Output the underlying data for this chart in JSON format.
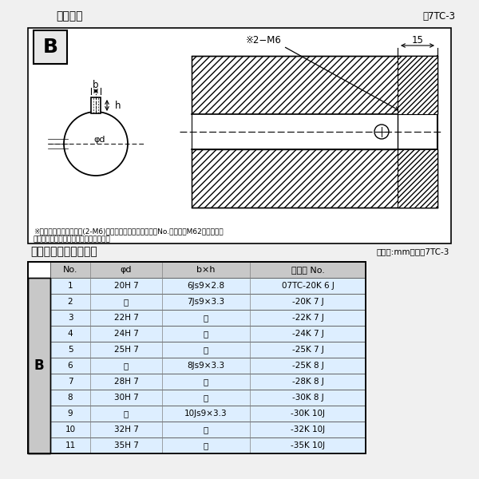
{
  "bg_color": "#f0f0f0",
  "section1_title": "軸穴形状",
  "section1_fig_ref": "囷7TC-3",
  "section2_title": "軸穴形状コード一覧表",
  "section2_unit": "（単位:mm）　袅7TC-3",
  "note_line1": "※セットボルト用タップ(2-M6)が必要な場合は右記コードNo.の末尾にM62を付ける。",
  "note_line2": "（セットボルトは付属されています。）",
  "table_headers": [
    "No.",
    "φd",
    "b×h",
    "コード No."
  ],
  "table_rows": [
    [
      "1",
      "20H 7",
      "6Js9×2.8",
      "07TC-20K 6 J"
    ],
    [
      "2",
      "゜",
      "7Js9×3.3",
      "-20K 7 J"
    ],
    [
      "3",
      "22H 7",
      "゜",
      "-22K 7 J"
    ],
    [
      "4",
      "24H 7",
      "゜",
      "-24K 7 J"
    ],
    [
      "5",
      "25H 7",
      "゜",
      "-25K 7 J"
    ],
    [
      "6",
      "゜",
      "8Js9×3.3",
      "-25K 8 J"
    ],
    [
      "7",
      "28H 7",
      "゜",
      "-28K 8 J"
    ],
    [
      "8",
      "30H 7",
      "゜",
      "-30K 8 J"
    ],
    [
      "9",
      "゜",
      "10Js9×3.3",
      "-30K 10J"
    ],
    [
      "10",
      "32H 7",
      "゜",
      "-32K 10J"
    ],
    [
      "11",
      "35H 7",
      "゜",
      "-35K 10J"
    ]
  ],
  "row_label_B": "B",
  "header_bg": "#c8c8c8",
  "row_bg": "#ddeeff",
  "table_border": "#808080",
  "b_col_bg": "#c8c8c8",
  "diagram_bg": "#ffffff",
  "box_bg": "#e8e8e8"
}
